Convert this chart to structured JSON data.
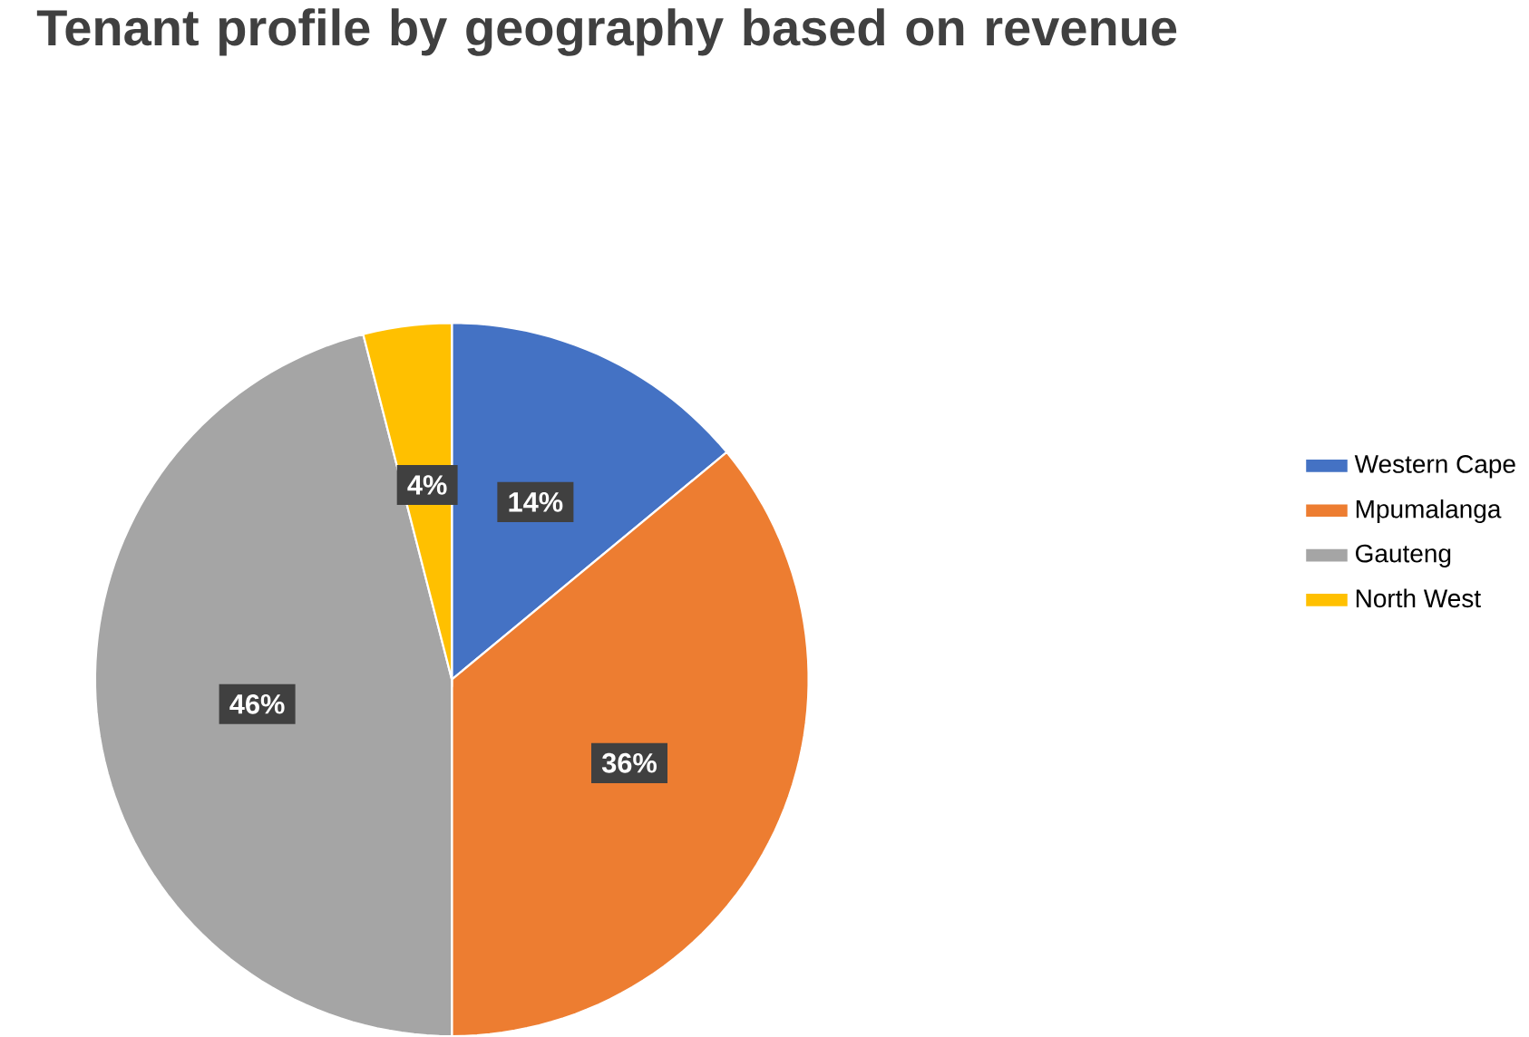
{
  "chart_data": {
    "type": "pie",
    "title": "Tenant profile by geography based on revenue",
    "categories": [
      "Western Cape",
      "Mpumalanga",
      "Gauteng",
      "North West"
    ],
    "values": [
      14,
      36,
      46,
      4
    ],
    "colors": [
      "#4472c4",
      "#ed7d31",
      "#a5a5a5",
      "#ffc000"
    ],
    "value_labels": [
      "14%",
      "36%",
      "46%",
      "4%"
    ],
    "legend": "right"
  }
}
